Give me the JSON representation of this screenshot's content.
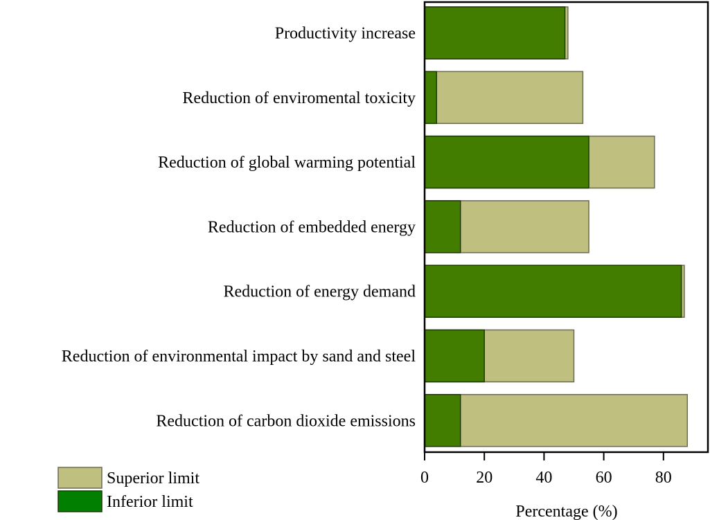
{
  "chart_data": {
    "type": "bar",
    "orientation": "horizontal",
    "title": "",
    "xlabel": "Percentage (%)",
    "ylabel": "",
    "xlim": [
      0,
      95
    ],
    "xticks": [
      0,
      20,
      40,
      60,
      80
    ],
    "grid": false,
    "legend_position": "bottom-left",
    "categories": [
      "Productivity increase",
      "Reduction of enviromental toxicity",
      "Reduction of global warming potential",
      "Reduction of embedded energy",
      "Reduction of energy demand",
      "Reduction of environmental impact by sand and steel",
      "Reduction of carbon dioxide emissions"
    ],
    "series": [
      {
        "name": "Superior limit",
        "color": "#bfbf7f",
        "legend_color": "#bfbf7f",
        "values": [
          48,
          53,
          77,
          55,
          87,
          50,
          88
        ]
      },
      {
        "name": "Inferior limit",
        "color": "#437d00",
        "legend_color": "#007f00",
        "values": [
          47,
          4,
          55,
          12,
          86,
          20,
          12
        ]
      }
    ]
  }
}
